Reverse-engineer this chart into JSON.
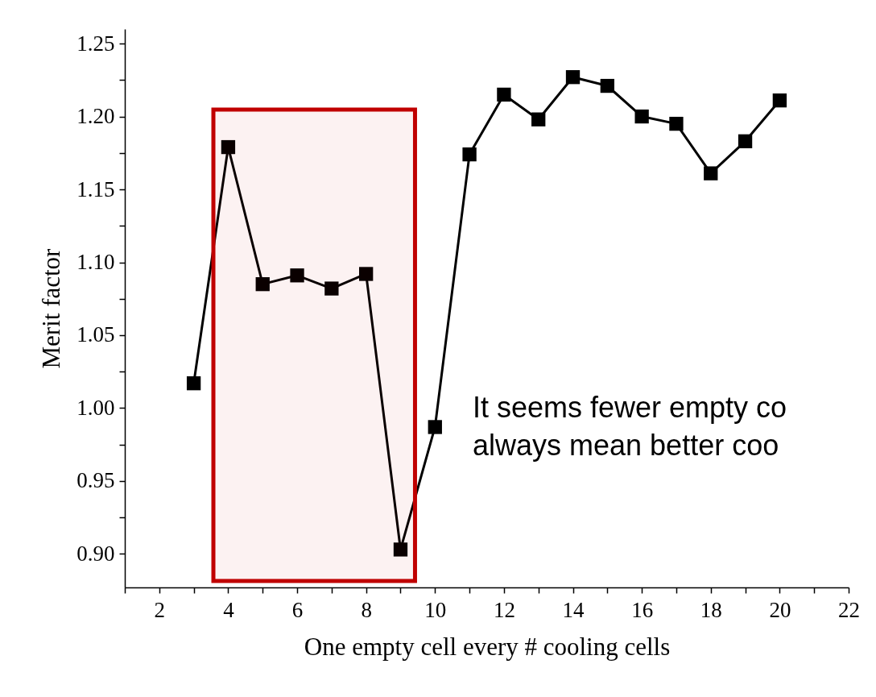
{
  "chart_data": {
    "type": "line",
    "xlabel": "One empty cell every # cooling cells",
    "ylabel": "Merit factor",
    "x": [
      3,
      4,
      5,
      6,
      7,
      8,
      9,
      10,
      11,
      12,
      13,
      14,
      15,
      16,
      17,
      18,
      19,
      20
    ],
    "series": [
      {
        "color": "#000000",
        "values": [
          1.017,
          1.179,
          1.085,
          1.091,
          1.082,
          1.092,
          0.903,
          0.987,
          1.174,
          1.215,
          1.198,
          1.227,
          1.221,
          1.2,
          1.195,
          1.161,
          1.183,
          1.211
        ]
      }
    ],
    "marker": "square",
    "line_style": "solid",
    "grid": false,
    "xlim": [
      1,
      22
    ],
    "ylim": [
      0.877,
      1.26
    ],
    "xticks": [
      {
        "value": 1,
        "label": null
      },
      2,
      {
        "value": 3,
        "label": null
      },
      4,
      {
        "value": 5,
        "label": null
      },
      6,
      {
        "value": 7,
        "label": null
      },
      8,
      {
        "value": 9,
        "label": null
      },
      10,
      {
        "value": 11,
        "label": null
      },
      12,
      {
        "value": 13,
        "label": null
      },
      14,
      {
        "value": 15,
        "label": null
      },
      16,
      {
        "value": 17,
        "label": null
      },
      18,
      {
        "value": 19,
        "label": null
      },
      20,
      {
        "value": 21,
        "label": null
      },
      22
    ],
    "yticks": [
      {
        "value": 0.9,
        "label": "0.90"
      },
      {
        "value": 0.925,
        "label": null
      },
      {
        "value": 0.95,
        "label": "0.95"
      },
      {
        "value": 0.975,
        "label": null
      },
      {
        "value": 1.0,
        "label": "1.00"
      },
      {
        "value": 1.025,
        "label": null
      },
      {
        "value": 1.05,
        "label": "1.05"
      },
      {
        "value": 1.075,
        "label": null
      },
      {
        "value": 1.1,
        "label": "1.10"
      },
      {
        "value": 1.125,
        "label": null
      },
      {
        "value": 1.15,
        "label": "1.15"
      },
      {
        "value": 1.175,
        "label": null
      },
      {
        "value": 1.2,
        "label": "1.20"
      },
      {
        "value": 1.225,
        "label": null
      },
      {
        "value": 1.25,
        "label": "1.25"
      }
    ],
    "bands": [
      {
        "axis": "x",
        "from": 3.57,
        "to": 9.42,
        "color": "#c00000"
      }
    ],
    "annotations": [
      "It seems fewer empty co",
      "always mean better coo"
    ]
  }
}
